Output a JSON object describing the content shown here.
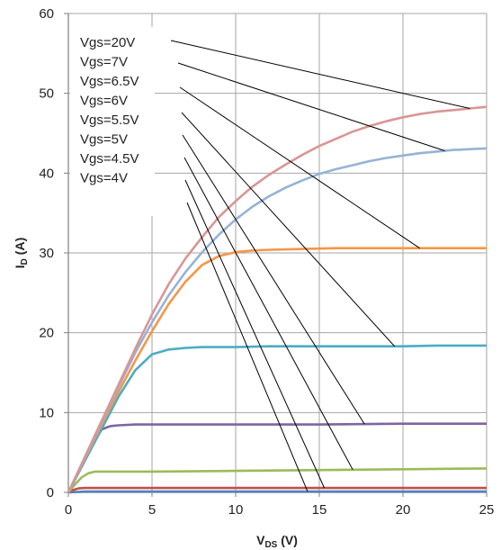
{
  "chart_data": {
    "type": "line",
    "xlabel_main": "V",
    "xlabel_sub": "DS",
    "xlabel_unit": " (V)",
    "ylabel_main": "I",
    "ylabel_sub": "D",
    "ylabel_unit": " (A)",
    "xlim": [
      0,
      25
    ],
    "ylim": [
      0,
      60
    ],
    "xticks": [
      0,
      5,
      10,
      15,
      20,
      25
    ],
    "yticks": [
      0,
      10,
      20,
      30,
      40,
      50,
      60
    ],
    "grid": true,
    "legend_placement": "top-left",
    "series": [
      {
        "name": "Vgs=20V",
        "color": "#d99694",
        "x": [
          0,
          1,
          2,
          3,
          4,
          5,
          6,
          7,
          8,
          9,
          10,
          11,
          12,
          13,
          14,
          15,
          16,
          17,
          18,
          19,
          20,
          21,
          22,
          23,
          24,
          25
        ],
        "y": [
          0,
          4.5,
          9,
          13.5,
          18,
          22.3,
          26.1,
          29.3,
          32,
          34.5,
          36.5,
          38.3,
          39.8,
          41.1,
          42.3,
          43.4,
          44.3,
          45.2,
          45.9,
          46.5,
          47,
          47.4,
          47.7,
          47.9,
          48.1,
          48.3
        ]
      },
      {
        "name": "Vgs=7V",
        "color": "#95b3d7",
        "x": [
          0,
          1,
          2,
          3,
          4,
          5,
          6,
          7,
          8,
          9,
          10,
          11,
          12,
          13,
          14,
          15,
          16,
          17,
          18,
          19,
          20,
          21,
          22,
          23,
          24,
          25
        ],
        "y": [
          0,
          4.4,
          8.8,
          13.2,
          17.5,
          21.3,
          24.7,
          27.6,
          30.1,
          32.3,
          34.2,
          35.8,
          37.1,
          38.2,
          39.1,
          39.9,
          40.5,
          41,
          41.5,
          41.9,
          42.2,
          42.5,
          42.7,
          42.9,
          43,
          43.1
        ]
      },
      {
        "name": "Vgs=6.5V",
        "color": "#f79646",
        "x": [
          0,
          1,
          2,
          3,
          4,
          5,
          6,
          7,
          8,
          9,
          10,
          11,
          12,
          14,
          16,
          18,
          20,
          22,
          24,
          25
        ],
        "y": [
          0,
          4.3,
          8.5,
          12.6,
          16.5,
          20.2,
          23.6,
          26.4,
          28.5,
          29.6,
          30.1,
          30.3,
          30.4,
          30.5,
          30.6,
          30.6,
          30.6,
          30.6,
          30.6,
          30.6
        ]
      },
      {
        "name": "Vgs=6V",
        "color": "#4bacc6",
        "x": [
          0,
          1,
          2,
          3,
          4,
          5,
          6,
          7,
          8,
          10,
          12,
          14,
          16,
          18,
          20,
          22,
          24,
          25
        ],
        "y": [
          0,
          4,
          8,
          12,
          15.3,
          17.3,
          17.9,
          18.1,
          18.2,
          18.2,
          18.3,
          18.3,
          18.3,
          18.3,
          18.3,
          18.4,
          18.4,
          18.4
        ]
      },
      {
        "name": "Vgs=5.5V",
        "color": "#8064a2",
        "x": [
          0,
          0.5,
          1,
          1.5,
          2,
          2.5,
          3,
          4,
          5,
          7,
          10,
          15,
          20,
          25
        ],
        "y": [
          0,
          2.1,
          4.2,
          6.3,
          7.9,
          8.3,
          8.4,
          8.5,
          8.5,
          8.5,
          8.5,
          8.5,
          8.6,
          8.6
        ]
      },
      {
        "name": "Vgs=5V",
        "color": "#9bbb59",
        "x": [
          0,
          0.4,
          0.8,
          1.2,
          1.6,
          2,
          3,
          5,
          10,
          15,
          20,
          25
        ],
        "y": [
          0,
          1,
          1.9,
          2.4,
          2.6,
          2.6,
          2.6,
          2.6,
          2.7,
          2.8,
          2.9,
          3
        ]
      },
      {
        "name": "Vgs=4.5V",
        "color": "#c0504d",
        "x": [
          0,
          0.3,
          0.6,
          1,
          2,
          5,
          10,
          15,
          20,
          25
        ],
        "y": [
          0,
          0.3,
          0.5,
          0.55,
          0.55,
          0.55,
          0.55,
          0.55,
          0.55,
          0.55
        ]
      },
      {
        "name": "Vgs=4V",
        "color": "#4f81bd",
        "x": [
          0,
          1,
          5,
          10,
          15,
          20,
          25
        ],
        "y": [
          0,
          0.1,
          0.1,
          0.1,
          0.1,
          0.1,
          0.1
        ]
      }
    ]
  }
}
